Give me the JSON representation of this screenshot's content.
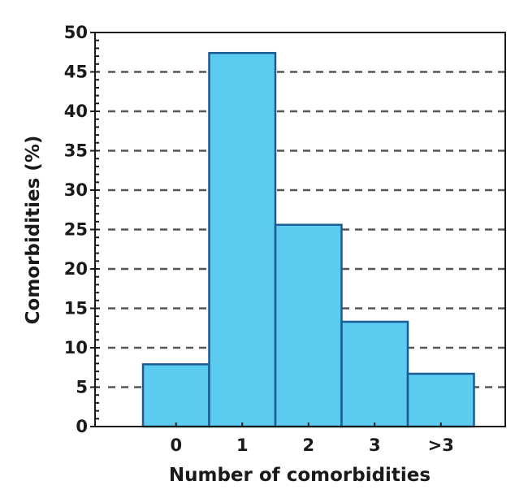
{
  "chart_data": {
    "type": "bar",
    "categories": [
      "0",
      "1",
      "2",
      "3",
      ">3"
    ],
    "values": [
      7.9,
      47.4,
      25.6,
      13.3,
      6.7
    ],
    "title": "",
    "xlabel": "Number of comorbidities",
    "ylabel": "Comorbidities (%)",
    "ylim": [
      0,
      50
    ],
    "yticks": [
      0,
      5,
      10,
      15,
      20,
      25,
      30,
      35,
      40,
      45,
      50
    ],
    "ytick_labels": [
      "0",
      "5",
      "10",
      "15",
      "20",
      "25",
      "30",
      "35",
      "40",
      "45",
      "50"
    ],
    "grid": "horizontal dashed",
    "legend": "none",
    "bar_fill": "#5ccbf0",
    "bar_edge": "#1b5c94",
    "grid_color": "#555555"
  }
}
